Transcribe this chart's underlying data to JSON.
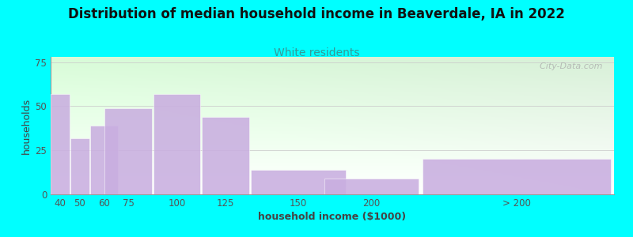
{
  "title": "Distribution of median household income in Beaverdale, IA in 2022",
  "subtitle": "White residents",
  "xlabel": "household income ($1000)",
  "ylabel": "households",
  "background_color": "#00FFFF",
  "bar_color": "#c9aee0",
  "yticks": [
    0,
    25,
    50,
    75
  ],
  "ylim": [
    0,
    78
  ],
  "categories": [
    "40",
    "50",
    "60",
    "75",
    "100",
    "125",
    "150",
    "200",
    "> 200"
  ],
  "values": [
    57,
    32,
    39,
    49,
    57,
    44,
    14,
    9,
    20
  ],
  "bar_lefts": [
    35,
    45,
    55,
    62.5,
    87.5,
    112.5,
    137.5,
    175,
    225
  ],
  "bar_widths": [
    10,
    10,
    15,
    25,
    25,
    25,
    50,
    50,
    100
  ],
  "title_fontsize": 12,
  "subtitle_fontsize": 10,
  "subtitle_color": "#339999",
  "axis_label_fontsize": 9,
  "tick_fontsize": 8.5,
  "watermark": "  City-Data.com",
  "grid_color": "#cccccc",
  "plot_bg_top": "#d8f0d8",
  "plot_bg_bottom": "#ffffff"
}
